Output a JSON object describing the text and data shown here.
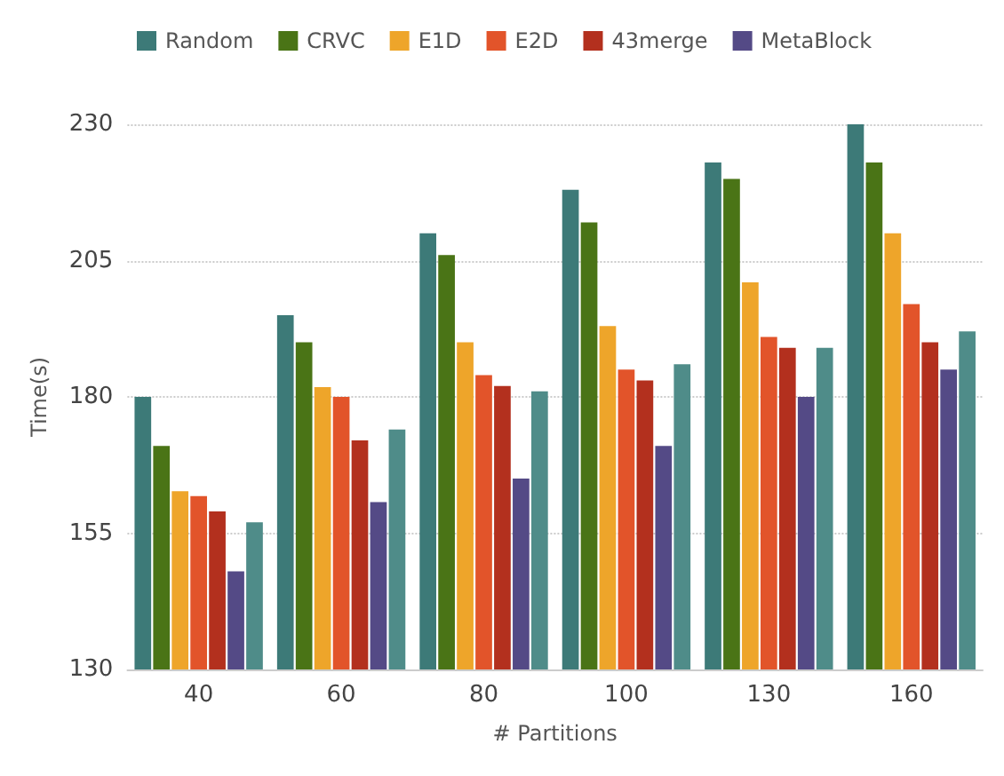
{
  "chart_data": {
    "type": "bar",
    "xlabel": "# Partitions",
    "ylabel": "Time(s)",
    "categories": [
      "40",
      "60",
      "80",
      "100",
      "130",
      "160"
    ],
    "series": [
      {
        "name": "Random",
        "color": "#3d7a78",
        "values": [
          180,
          195,
          210,
          218,
          223,
          230
        ]
      },
      {
        "name": "CRVC",
        "color": "#4a7416",
        "values": [
          171,
          190,
          206,
          212,
          220,
          223
        ]
      },
      {
        "name": "E1D",
        "color": "#eea52a",
        "values": [
          162.7,
          181.8,
          190,
          193,
          201,
          210
        ]
      },
      {
        "name": "E2D",
        "color": "#e2542a",
        "values": [
          161.8,
          180,
          184,
          185,
          191,
          197
        ]
      },
      {
        "name": "43merge",
        "color": "#b3301e",
        "values": [
          159,
          172,
          182,
          183,
          189,
          190
        ]
      },
      {
        "name": "MetaBlock",
        "color": "#544a86",
        "values": [
          148,
          160.7,
          165,
          171,
          180,
          185
        ]
      },
      {
        "color": "#4f8c89",
        "values": [
          157,
          174,
          181,
          186,
          189,
          192
        ]
      }
    ],
    "ylim": [
      130,
      230
    ],
    "yticks": [
      130,
      155,
      180,
      205,
      230
    ],
    "grid": "y",
    "legend": "top left"
  }
}
